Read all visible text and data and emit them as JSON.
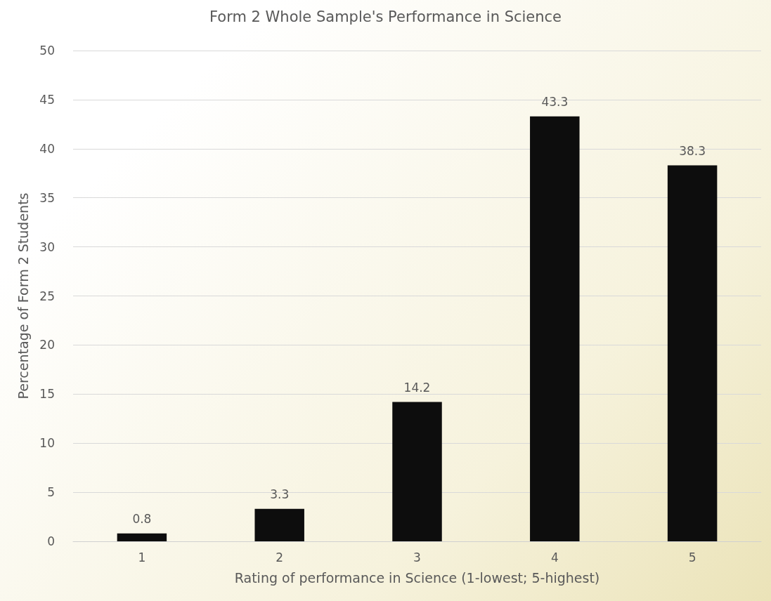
{
  "chart_data": {
    "type": "bar",
    "title": "Form 2 Whole Sample's Performance in Science",
    "xlabel": "Rating of performance in Science (1-lowest; 5-highest)",
    "ylabel": "Percentage of Form 2 Students",
    "categories": [
      "1",
      "2",
      "3",
      "4",
      "5"
    ],
    "values": [
      0.8,
      3.3,
      14.2,
      43.3,
      38.3
    ],
    "color": "#0d0d0d",
    "ylim": [
      0,
      50
    ],
    "yticks": [
      0,
      5,
      10,
      15,
      20,
      25,
      30,
      35,
      40,
      45,
      50
    ],
    "grid": "y",
    "data_labels": true
  }
}
